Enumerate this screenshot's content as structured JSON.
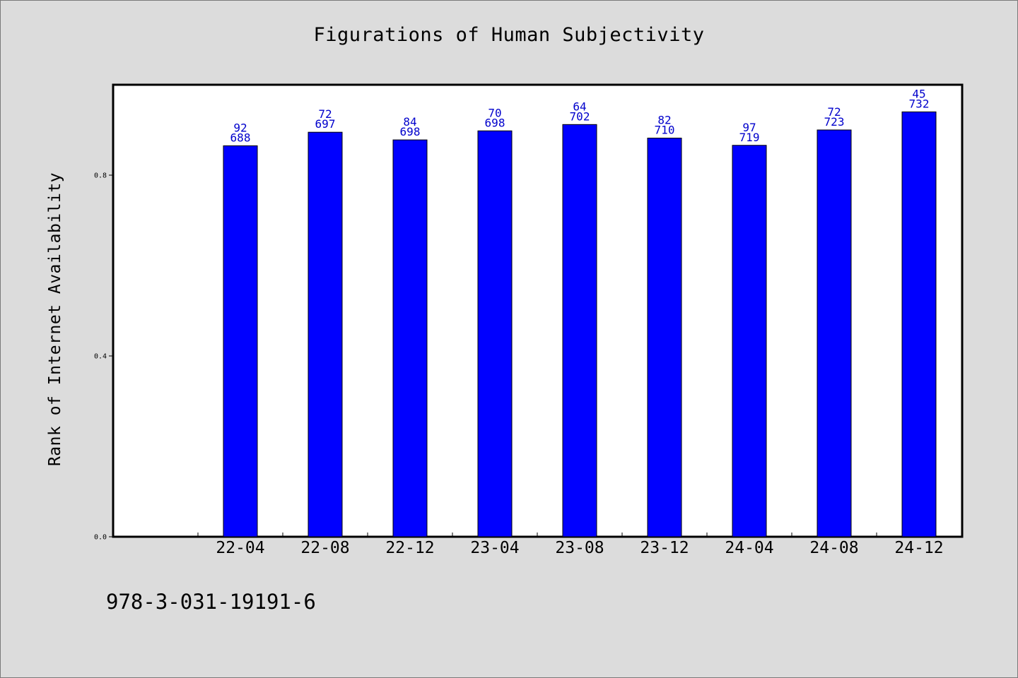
{
  "chart_data": {
    "type": "bar",
    "title": "Figurations of Human Subjectivity",
    "xlabel": "",
    "ylabel": "Rank of Internet Availability",
    "categories": [
      "22-04",
      "22-08",
      "22-12",
      "23-04",
      "23-08",
      "23-12",
      "24-04",
      "24-08",
      "24-12"
    ],
    "values": [
      0.865,
      0.895,
      0.878,
      0.898,
      0.912,
      0.882,
      0.866,
      0.9,
      0.94
    ],
    "label_top": [
      "92",
      "72",
      "84",
      "70",
      "64",
      "82",
      "97",
      "72",
      "45"
    ],
    "label_bottom": [
      "688",
      "697",
      "698",
      "698",
      "702",
      "710",
      "719",
      "723",
      "732"
    ],
    "yticks": [
      "0.0",
      "0.4",
      "0.8"
    ],
    "ytick_values": [
      0.0,
      0.4,
      0.8
    ],
    "ylim": [
      0.0,
      1.0
    ],
    "grid": false,
    "bar_color": "#0000ff",
    "label_color": "#0000cc"
  },
  "footer": "978-3-031-19191-6"
}
